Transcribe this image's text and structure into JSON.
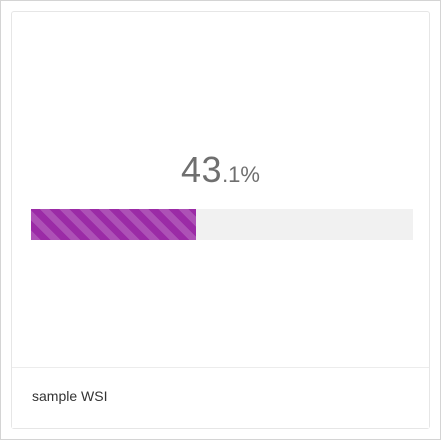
{
  "progress": {
    "integer": "43",
    "fraction": ".1%",
    "value_percent": 43.1,
    "bar_color": "#9b2ba6",
    "track_color": "#f1f1f1"
  },
  "footer": {
    "label": "sample WSI"
  }
}
